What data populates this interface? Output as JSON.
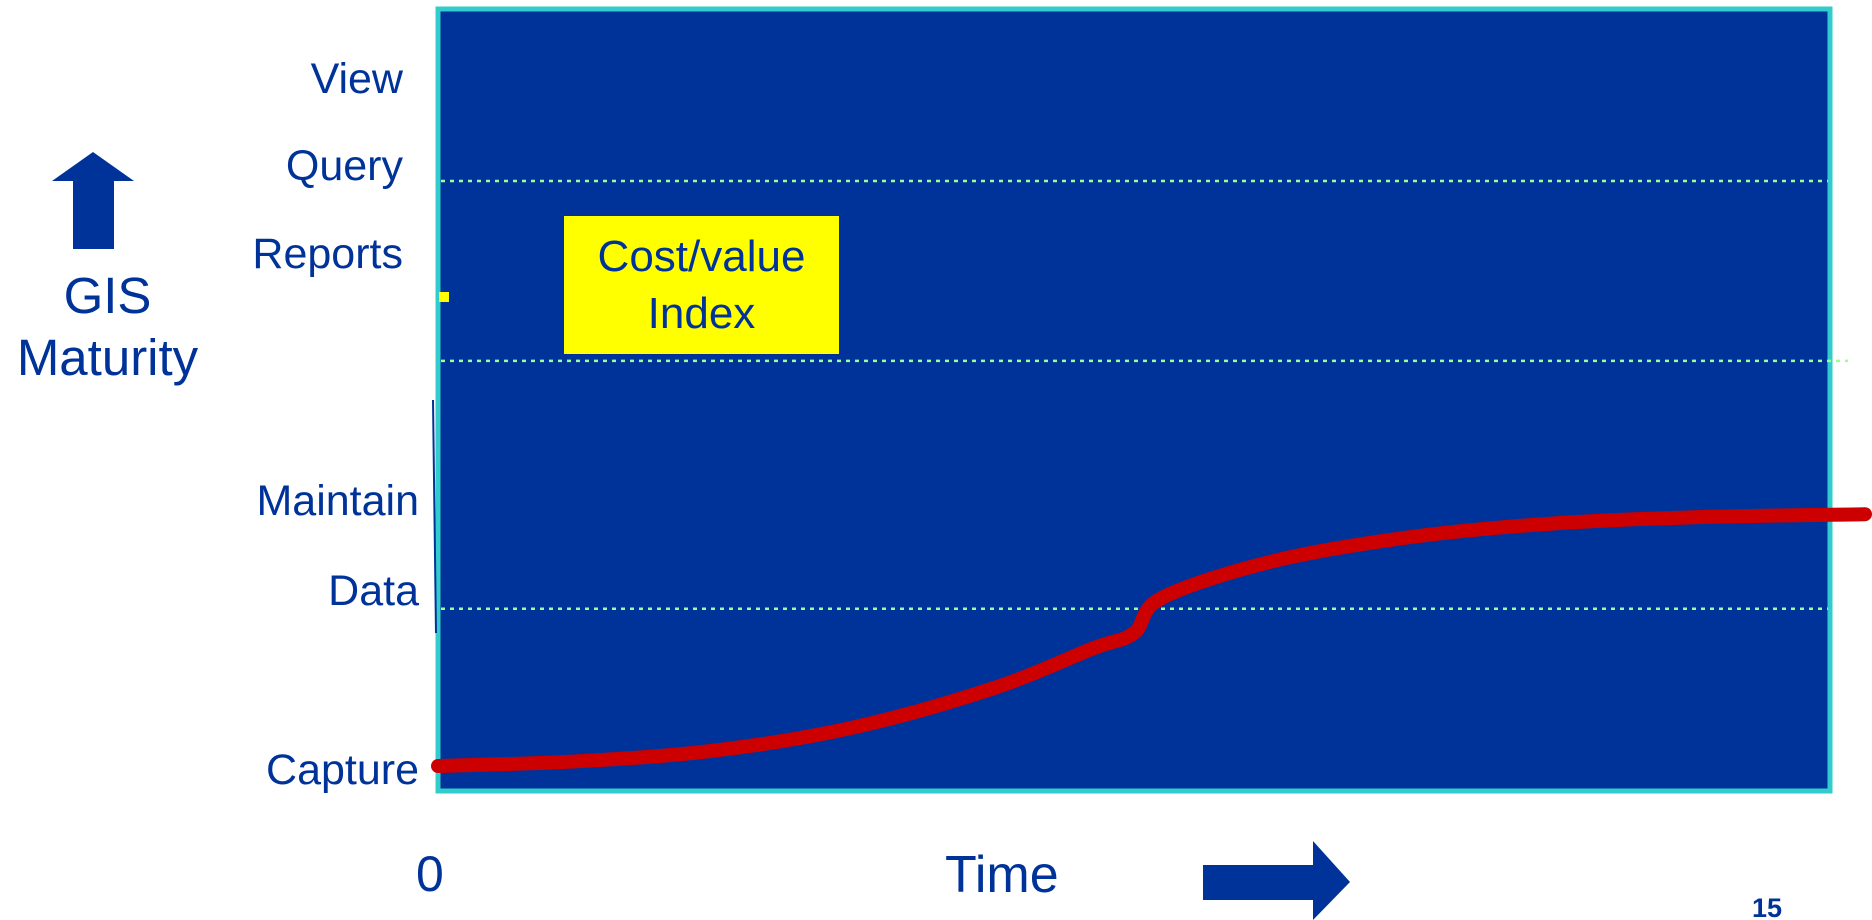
{
  "chart_data": {
    "type": "line",
    "title": "",
    "xlabel": "Time",
    "ylabel": "GIS Maturity",
    "y_levels": [
      "View",
      "Query",
      "Reports",
      "Maintain",
      "Data",
      "Capture"
    ],
    "x_tick_labels": [
      "0"
    ],
    "series": [
      {
        "values_description_free": true,
        "x": [
          0,
          0.1,
          0.2,
          0.3,
          0.4,
          0.47,
          0.5,
          0.52,
          0.6,
          0.7,
          0.8,
          0.9,
          1.0
        ],
        "y": [
          0.0,
          0.006,
          0.02,
          0.05,
          0.1,
          0.15,
          0.17,
          0.215,
          0.262,
          0.293,
          0.31,
          0.318,
          0.322
        ]
      }
    ],
    "band_boundaries": [
      0.233,
      0.55,
      0.78
    ],
    "colors": {
      "plot_background": "#003399",
      "plot_border": "#33cccc",
      "curve": "#cc0000",
      "band_lines": "#99ff99",
      "text": "#003399",
      "annotation_box": "#ffff00"
    },
    "annotation": {
      "line1": "Cost/value",
      "line2": "Index"
    },
    "page_number": "15"
  },
  "labels": {
    "y_axis_title_line1": "GIS",
    "y_axis_title_line2": "Maturity",
    "x_axis_title": "Time",
    "x_origin": "0",
    "view": "View",
    "query": "Query",
    "reports": "Reports",
    "maintain": "Maintain",
    "data": "Data",
    "capture": "Capture"
  },
  "icons": {
    "y_arrow": "up-arrow-icon",
    "x_arrow": "right-arrow-icon"
  }
}
